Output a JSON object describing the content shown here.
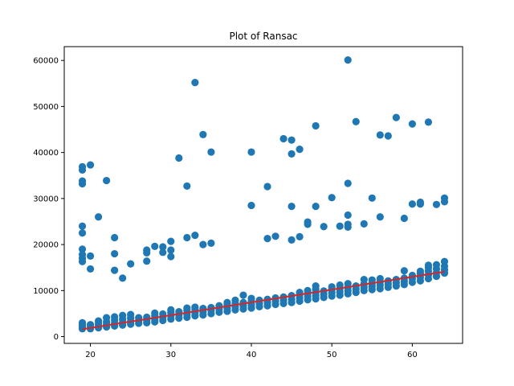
{
  "chart_data": {
    "type": "scatter",
    "title": "Plot of Ransac",
    "xlabel": "",
    "ylabel": "",
    "xlim": [
      16.75,
      66.25
    ],
    "ylim": [
      -1475,
      63000
    ],
    "x_ticks": [
      20,
      30,
      40,
      50,
      60
    ],
    "y_ticks": [
      0,
      10000,
      20000,
      30000,
      40000,
      50000,
      60000
    ],
    "grid": false,
    "legend": "none",
    "colors": {
      "points": "#1f77b4",
      "fit_line": "#d62728"
    },
    "series": [
      {
        "type": "scatter",
        "points": [
          [
            19,
            1700
          ],
          [
            19,
            2000
          ],
          [
            19,
            2400
          ],
          [
            19,
            2700
          ],
          [
            19,
            3000
          ],
          [
            20,
            1700
          ],
          [
            20,
            2200
          ],
          [
            20,
            2600
          ],
          [
            21,
            1900
          ],
          [
            21,
            2400
          ],
          [
            21,
            2900
          ],
          [
            21,
            3400
          ],
          [
            22,
            2100
          ],
          [
            22,
            2600
          ],
          [
            22,
            3200
          ],
          [
            22,
            4100
          ],
          [
            23,
            2300
          ],
          [
            23,
            2900
          ],
          [
            23,
            3600
          ],
          [
            23,
            4300
          ],
          [
            24,
            2500
          ],
          [
            24,
            3100
          ],
          [
            24,
            3800
          ],
          [
            24,
            4600
          ],
          [
            25,
            2700
          ],
          [
            25,
            3300
          ],
          [
            25,
            4000
          ],
          [
            25,
            4800
          ],
          [
            26,
            2900
          ],
          [
            26,
            3400
          ],
          [
            26,
            4100
          ],
          [
            27,
            3000
          ],
          [
            27,
            3600
          ],
          [
            27,
            4200
          ],
          [
            28,
            3200
          ],
          [
            28,
            3800
          ],
          [
            28,
            4500
          ],
          [
            28,
            5100
          ],
          [
            29,
            3500
          ],
          [
            29,
            4200
          ],
          [
            29,
            4900
          ],
          [
            30,
            3800
          ],
          [
            30,
            4500
          ],
          [
            30,
            5200
          ],
          [
            30,
            5800
          ],
          [
            31,
            4000
          ],
          [
            31,
            4700
          ],
          [
            31,
            5400
          ],
          [
            32,
            4200
          ],
          [
            32,
            4900
          ],
          [
            32,
            5700
          ],
          [
            32,
            6200
          ],
          [
            33,
            4500
          ],
          [
            33,
            5200
          ],
          [
            33,
            5900
          ],
          [
            33,
            6400
          ],
          [
            34,
            4700
          ],
          [
            34,
            5400
          ],
          [
            34,
            6100
          ],
          [
            35,
            5000
          ],
          [
            35,
            5700
          ],
          [
            35,
            6300
          ],
          [
            36,
            5300
          ],
          [
            36,
            6000
          ],
          [
            36,
            6700
          ],
          [
            37,
            5500
          ],
          [
            37,
            6200
          ],
          [
            37,
            6900
          ],
          [
            37,
            7400
          ],
          [
            38,
            5800
          ],
          [
            38,
            6500
          ],
          [
            38,
            7200
          ],
          [
            38,
            7900
          ],
          [
            39,
            6000
          ],
          [
            39,
            6700
          ],
          [
            39,
            7400
          ],
          [
            39,
            9000
          ],
          [
            40,
            6200
          ],
          [
            40,
            6900
          ],
          [
            40,
            7600
          ],
          [
            40,
            8300
          ],
          [
            41,
            6500
          ],
          [
            41,
            7200
          ],
          [
            41,
            7900
          ],
          [
            42,
            6700
          ],
          [
            42,
            7400
          ],
          [
            42,
            8100
          ],
          [
            43,
            7000
          ],
          [
            43,
            7700
          ],
          [
            43,
            8400
          ],
          [
            44,
            7200
          ],
          [
            44,
            7900
          ],
          [
            44,
            8600
          ],
          [
            45,
            7400
          ],
          [
            45,
            8100
          ],
          [
            45,
            8900
          ],
          [
            46,
            7700
          ],
          [
            46,
            8400
          ],
          [
            46,
            9100
          ],
          [
            46,
            9600
          ],
          [
            47,
            8000
          ],
          [
            47,
            8700
          ],
          [
            47,
            9400
          ],
          [
            47,
            10000
          ],
          [
            48,
            8200
          ],
          [
            48,
            8900
          ],
          [
            48,
            9600
          ],
          [
            48,
            10300
          ],
          [
            48,
            11000
          ],
          [
            49,
            8500
          ],
          [
            49,
            9200
          ],
          [
            49,
            9900
          ],
          [
            50,
            8800
          ],
          [
            50,
            9500
          ],
          [
            50,
            10200
          ],
          [
            50,
            10800
          ],
          [
            51,
            9000
          ],
          [
            51,
            9700
          ],
          [
            51,
            10400
          ],
          [
            51,
            11200
          ],
          [
            52,
            9300
          ],
          [
            52,
            10000
          ],
          [
            52,
            10700
          ],
          [
            52,
            11500
          ],
          [
            53,
            9600
          ],
          [
            53,
            10300
          ],
          [
            53,
            11000
          ],
          [
            54,
            10000
          ],
          [
            54,
            10700
          ],
          [
            54,
            11400
          ],
          [
            54,
            12400
          ],
          [
            55,
            10200
          ],
          [
            55,
            10900
          ],
          [
            55,
            11600
          ],
          [
            55,
            12300
          ],
          [
            56,
            10400
          ],
          [
            56,
            11200
          ],
          [
            56,
            11900
          ],
          [
            56,
            12600
          ],
          [
            57,
            10700
          ],
          [
            57,
            11400
          ],
          [
            57,
            12100
          ],
          [
            58,
            11000
          ],
          [
            58,
            11700
          ],
          [
            58,
            12400
          ],
          [
            59,
            11300
          ],
          [
            59,
            12000
          ],
          [
            59,
            12700
          ],
          [
            59,
            14300
          ],
          [
            60,
            11800
          ],
          [
            60,
            12600
          ],
          [
            60,
            13300
          ],
          [
            61,
            12100
          ],
          [
            61,
            12900
          ],
          [
            61,
            13700
          ],
          [
            61,
            14200
          ],
          [
            62,
            12600
          ],
          [
            62,
            13400
          ],
          [
            62,
            14200
          ],
          [
            62,
            15000
          ],
          [
            62,
            15500
          ],
          [
            63,
            13100
          ],
          [
            63,
            13900
          ],
          [
            63,
            14700
          ],
          [
            63,
            15600
          ],
          [
            64,
            13800
          ],
          [
            64,
            14500
          ],
          [
            64,
            15300
          ],
          [
            64,
            16300
          ],
          [
            19,
            36900
          ],
          [
            19,
            36200
          ],
          [
            19,
            33800
          ],
          [
            19,
            33200
          ],
          [
            19,
            24000
          ],
          [
            19,
            22500
          ],
          [
            19,
            19000
          ],
          [
            19,
            17800
          ],
          [
            19,
            17000
          ],
          [
            19,
            16300
          ],
          [
            20,
            37300
          ],
          [
            20,
            17500
          ],
          [
            20,
            14700
          ],
          [
            21,
            26000
          ],
          [
            22,
            33900
          ],
          [
            23,
            21500
          ],
          [
            23,
            18000
          ],
          [
            23,
            14400
          ],
          [
            24,
            12700
          ],
          [
            25,
            15800
          ],
          [
            27,
            18800
          ],
          [
            27,
            18200
          ],
          [
            27,
            16400
          ],
          [
            28,
            19600
          ],
          [
            29,
            19500
          ],
          [
            29,
            18300
          ],
          [
            30,
            20700
          ],
          [
            30,
            18800
          ],
          [
            30,
            17400
          ],
          [
            31,
            38800
          ],
          [
            32,
            32700
          ],
          [
            32,
            21500
          ],
          [
            33,
            55200
          ],
          [
            33,
            22000
          ],
          [
            34,
            43900
          ],
          [
            34,
            20000
          ],
          [
            35,
            40100
          ],
          [
            35,
            20300
          ],
          [
            40,
            40100
          ],
          [
            40,
            28500
          ],
          [
            42,
            32600
          ],
          [
            42,
            21300
          ],
          [
            43,
            21800
          ],
          [
            44,
            43000
          ],
          [
            45,
            42700
          ],
          [
            45,
            39700
          ],
          [
            45,
            28300
          ],
          [
            45,
            21000
          ],
          [
            46,
            40700
          ],
          [
            46,
            21700
          ],
          [
            47,
            24900
          ],
          [
            47,
            24400
          ],
          [
            48,
            45800
          ],
          [
            48,
            28300
          ],
          [
            49,
            23900
          ],
          [
            50,
            30200
          ],
          [
            51,
            24000
          ],
          [
            52,
            60100
          ],
          [
            52,
            33300
          ],
          [
            52,
            26400
          ],
          [
            52,
            24400
          ],
          [
            52,
            23800
          ],
          [
            53,
            46700
          ],
          [
            54,
            24500
          ],
          [
            55,
            30100
          ],
          [
            56,
            43800
          ],
          [
            56,
            26000
          ],
          [
            57,
            43600
          ],
          [
            58,
            47600
          ],
          [
            59,
            25700
          ],
          [
            60,
            46200
          ],
          [
            60,
            28800
          ],
          [
            61,
            29200
          ],
          [
            61,
            28800
          ],
          [
            62,
            46600
          ],
          [
            63,
            28700
          ],
          [
            64,
            30100
          ],
          [
            64,
            29300
          ]
        ]
      },
      {
        "type": "line",
        "points": [
          [
            19,
            1600
          ],
          [
            64,
            14100
          ]
        ]
      }
    ]
  }
}
